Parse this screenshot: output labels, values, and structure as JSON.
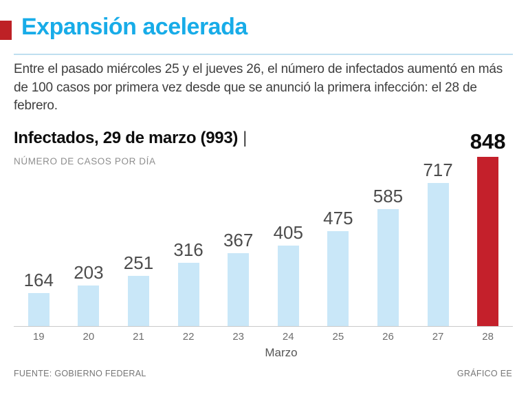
{
  "colors": {
    "accent_cyan": "#18ace8",
    "accent_red": "#be2126",
    "bar_blue": "#c9e7f8",
    "bar_red": "#c4202b",
    "rule_blue": "#bfdfef",
    "baseline_gray": "#c9c9c9"
  },
  "header": {
    "title": "Expansión acelerada"
  },
  "intro": {
    "text": "Entre el pasado miércoles 25 y el jueves 26, el número de infectados aumentó en más de 100 casos por primera vez desde que se anunció la primera infección: el 28 de febrero."
  },
  "chart": {
    "title": "Infectados, 29 de marzo (993)",
    "title_separator": "|",
    "subtitle": "NÚMERO DE CASOS POR DÍA",
    "xlabel": "Marzo"
  },
  "chart_data": {
    "type": "bar",
    "title": "Infectados, 29 de marzo (993)",
    "subtitle": "NÚMERO DE CASOS POR DÍA",
    "categories": [
      "19",
      "20",
      "21",
      "22",
      "23",
      "24",
      "25",
      "26",
      "27",
      "28"
    ],
    "values": [
      164,
      203,
      251,
      316,
      367,
      405,
      475,
      585,
      717,
      848
    ],
    "xlabel": "Marzo",
    "ylabel": "NÚMERO DE CASOS POR DÍA",
    "ylim": [
      0,
      848
    ],
    "grid": false,
    "legend": "none",
    "bar_color": "#c9e7f8",
    "highlight_index": 9,
    "highlight_color": "#c4202b"
  },
  "footer": {
    "source": "FUENTE: GOBIERNO FEDERAL",
    "credit": "GRÁFICO EE"
  }
}
